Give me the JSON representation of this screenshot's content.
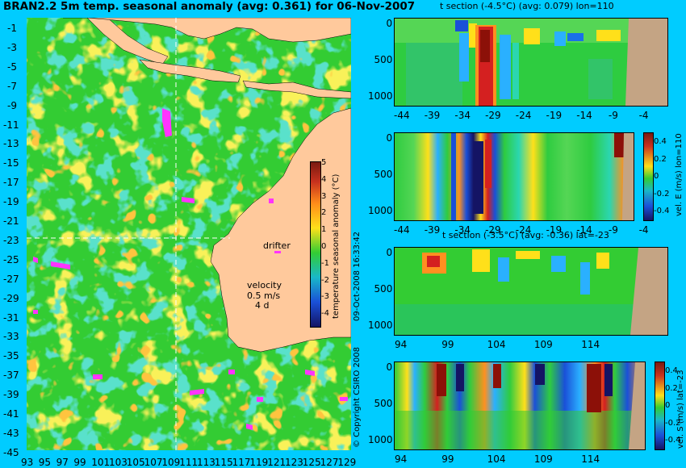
{
  "title": "BRAN2.2 5m temp. seasonal anomaly (avg: 0.361) for 06-Nov-2007",
  "map": {
    "lat_ticks": [
      "-1",
      "-3",
      "-5",
      "-7",
      "-9",
      "-11",
      "-13",
      "-15",
      "-17",
      "-19",
      "-21",
      "-23",
      "-25",
      "-27",
      "-29",
      "-31",
      "-33",
      "-35",
      "-37",
      "-39",
      "-41",
      "-43",
      "-45"
    ],
    "lon_ticks": [
      "93",
      "95",
      "97",
      "99",
      "101",
      "103",
      "105",
      "107",
      "109",
      "111",
      "113",
      "115",
      "117",
      "119",
      "121",
      "123",
      "125",
      "127",
      "129"
    ],
    "drifter_label": "drifter",
    "velocity_label": "velocity",
    "velocity_value": "0.5 m/s",
    "velocity_sub": "4 d",
    "colorbar_ticks": [
      "5",
      "4",
      "3",
      "2",
      "1",
      "0",
      "-1",
      "-2",
      "-3",
      "-4"
    ],
    "colorbar_label": "temperature seasonal anomaly (°C)",
    "date_stamp": "09-Oct-2008 16:33:42",
    "copyright": "© Copyright CSIRO 2008"
  },
  "panels": [
    {
      "title": "t section (-4.5°C) (avg: 0.079) lon=110",
      "y_ticks": [
        "0",
        "500",
        "1000"
      ],
      "x_ticks": [
        "-44",
        "-39",
        "-34",
        "-29",
        "-24",
        "-19",
        "-14",
        "-9",
        "-4"
      ]
    },
    {
      "title": "",
      "y_ticks": [
        "0",
        "500",
        "1000"
      ],
      "x_ticks": [
        "-44",
        "-39",
        "-34",
        "-29",
        "-24",
        "-19",
        "-14",
        "-9",
        "-4"
      ],
      "colorbar_ticks": [
        "0.4",
        "0.2",
        "0",
        "-0.2",
        "-0.4"
      ],
      "colorbar_label": "vel. E (m/s) lon=110"
    },
    {
      "title": "t section (-3.5°C) (avg: -0.36) lat=-23",
      "y_ticks": [
        "0",
        "500",
        "1000"
      ],
      "x_ticks": [
        "94",
        "99",
        "104",
        "109",
        "114"
      ]
    },
    {
      "title": "",
      "y_ticks": [
        "0",
        "500",
        "1000"
      ],
      "x_ticks": [
        "94",
        "99",
        "104",
        "109",
        "114"
      ],
      "colorbar_ticks": [
        "0.4",
        "0.2",
        "0",
        "-0.2",
        "-0.4"
      ],
      "colorbar_label": "vel. S (m/s) lat=-23"
    }
  ]
}
